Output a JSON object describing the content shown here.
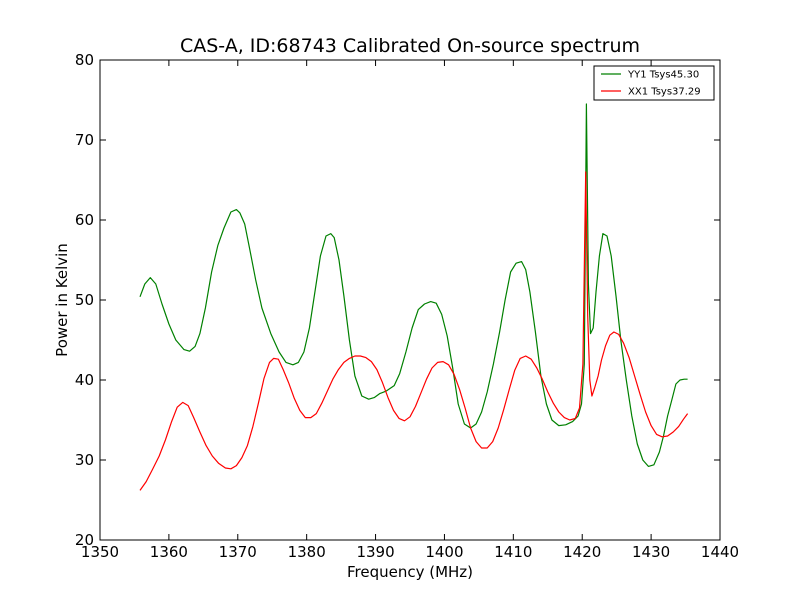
{
  "chart_data": {
    "type": "line",
    "title": "CAS-A, ID:68743 Calibrated On-source spectrum",
    "xlabel": "Frequency (MHz)",
    "ylabel": "Power in Kelvin",
    "xlim": [
      1350,
      1440
    ],
    "ylim": [
      20,
      80
    ],
    "xticks": [
      1350,
      1360,
      1370,
      1380,
      1390,
      1400,
      1410,
      1420,
      1430,
      1440
    ],
    "yticks": [
      20,
      30,
      40,
      50,
      60,
      70,
      80
    ],
    "grid": false,
    "legend_position": "top-right",
    "series": [
      {
        "name": "YY1 Tsys45.30",
        "color": "#008000",
        "x": [
          1355.8,
          1356.5,
          1357.3,
          1358.1,
          1359,
          1360,
          1361,
          1362.2,
          1363,
          1363.8,
          1364.5,
          1365.3,
          1366.2,
          1367.1,
          1368,
          1369,
          1369.8,
          1370.3,
          1371,
          1371.7,
          1372.6,
          1373.5,
          1374.8,
          1376,
          1377,
          1378,
          1378.8,
          1379.6,
          1380.4,
          1381.2,
          1382,
          1382.8,
          1383.5,
          1384,
          1384.7,
          1385.4,
          1386.2,
          1387,
          1388,
          1389,
          1389.8,
          1390.6,
          1391.5,
          1392.7,
          1393.5,
          1394.4,
          1395.3,
          1396.2,
          1397.1,
          1398,
          1398.8,
          1399.6,
          1400.4,
          1401.2,
          1402,
          1402.9,
          1403.8,
          1404.6,
          1405.4,
          1406.2,
          1407.1,
          1408,
          1408.8,
          1409.6,
          1410.4,
          1411.2,
          1411.8,
          1412.4,
          1413.2,
          1414,
          1414.8,
          1415.6,
          1416.6,
          1417.6,
          1418.6,
          1419.4,
          1419.9,
          1420.3,
          1420.6,
          1420.9,
          1421.2,
          1421.6,
          1422,
          1422.5,
          1423,
          1423.6,
          1424.2,
          1424.9,
          1425.6,
          1426.4,
          1427.2,
          1428,
          1428.8,
          1429.6,
          1430.4,
          1431.2,
          1431.8,
          1432.4,
          1433,
          1433.6,
          1434.2,
          1434.8,
          1435.3
        ],
        "y": [
          50.4,
          52,
          52.8,
          52,
          49.5,
          47,
          45,
          43.8,
          43.6,
          44.2,
          45.8,
          49,
          53.5,
          56.8,
          59,
          61,
          61.3,
          60.9,
          59.5,
          56.5,
          52.5,
          49,
          45.8,
          43.5,
          42.2,
          41.9,
          42.2,
          43.5,
          46.5,
          51,
          55.5,
          58,
          58.3,
          57.8,
          55,
          50.5,
          45,
          40.5,
          38,
          37.6,
          37.8,
          38.3,
          38.6,
          39.3,
          40.8,
          43.5,
          46.5,
          48.8,
          49.5,
          49.8,
          49.6,
          48.2,
          45.5,
          41.5,
          37,
          34.5,
          34,
          34.5,
          36,
          38.5,
          42,
          46,
          50,
          53.5,
          54.6,
          54.8,
          53.8,
          51,
          46,
          40.5,
          37,
          35,
          34.3,
          34.4,
          34.8,
          35.5,
          37,
          42,
          74.5,
          52,
          45.8,
          46.5,
          51,
          55.5,
          58.3,
          58,
          55.5,
          50.5,
          45,
          40,
          35.5,
          32,
          30,
          29.2,
          29.4,
          31,
          33,
          35.5,
          37.5,
          39.5,
          40,
          40.1,
          40.1
        ]
      },
      {
        "name": "XX1 Tsys37.29",
        "color": "#ff0000",
        "x": [
          1355.8,
          1356.7,
          1357.6,
          1358.6,
          1359.5,
          1360.4,
          1361.2,
          1362,
          1362.8,
          1363.6,
          1364.5,
          1365.4,
          1366.3,
          1367.2,
          1368.2,
          1369,
          1369.8,
          1370.6,
          1371.4,
          1372.2,
          1373,
          1373.8,
          1374.6,
          1375.2,
          1375.9,
          1376.6,
          1377.4,
          1378.2,
          1379,
          1379.8,
          1380.6,
          1381.4,
          1382.2,
          1383,
          1383.8,
          1384.6,
          1385.4,
          1386.2,
          1387,
          1387.8,
          1388.6,
          1389.4,
          1390.2,
          1391,
          1391.8,
          1392.6,
          1393.4,
          1394.2,
          1395,
          1395.8,
          1396.6,
          1397.4,
          1398.2,
          1399,
          1399.8,
          1400.6,
          1401.4,
          1402.2,
          1403,
          1403.8,
          1404.6,
          1405.4,
          1406.2,
          1407,
          1407.8,
          1408.6,
          1409.4,
          1410.2,
          1411,
          1411.8,
          1412.6,
          1413.4,
          1414.2,
          1415,
          1415.8,
          1416.6,
          1417.4,
          1418.2,
          1419,
          1419.6,
          1420.1,
          1420.5,
          1420.8,
          1421.1,
          1421.4,
          1421.8,
          1422.3,
          1422.8,
          1423.4,
          1424,
          1424.6,
          1425.3,
          1426,
          1426.8,
          1427.6,
          1428.4,
          1429.2,
          1430,
          1430.8,
          1431.6,
          1432.4,
          1433.2,
          1434,
          1434.7,
          1435.3
        ],
        "y": [
          26.2,
          27.3,
          28.8,
          30.5,
          32.5,
          34.8,
          36.6,
          37.2,
          36.8,
          35.3,
          33.5,
          31.8,
          30.5,
          29.6,
          29,
          28.9,
          29.3,
          30.3,
          31.8,
          34.2,
          37.1,
          40.2,
          42.2,
          42.7,
          42.6,
          41.3,
          39.6,
          37.7,
          36.2,
          35.3,
          35.3,
          35.8,
          37.1,
          38.6,
          40.1,
          41.3,
          42.2,
          42.7,
          43,
          43,
          42.8,
          42.3,
          41.3,
          39.7,
          37.8,
          36.2,
          35.2,
          34.9,
          35.4,
          36.7,
          38.4,
          40.1,
          41.5,
          42.2,
          42.3,
          41.9,
          40.7,
          38.8,
          36.5,
          34,
          32.3,
          31.5,
          31.5,
          32.3,
          34,
          36.3,
          38.8,
          41.2,
          42.7,
          43,
          42.6,
          41.5,
          40.1,
          38.5,
          37.1,
          36,
          35.3,
          35,
          35.2,
          36.5,
          42,
          66,
          48,
          40,
          38,
          39,
          40.5,
          42.5,
          44.3,
          45.6,
          46,
          45.7,
          44.6,
          42.8,
          40.5,
          38.2,
          36,
          34.3,
          33.2,
          32.9,
          33,
          33.5,
          34.2,
          35.1,
          35.8
        ]
      }
    ]
  }
}
